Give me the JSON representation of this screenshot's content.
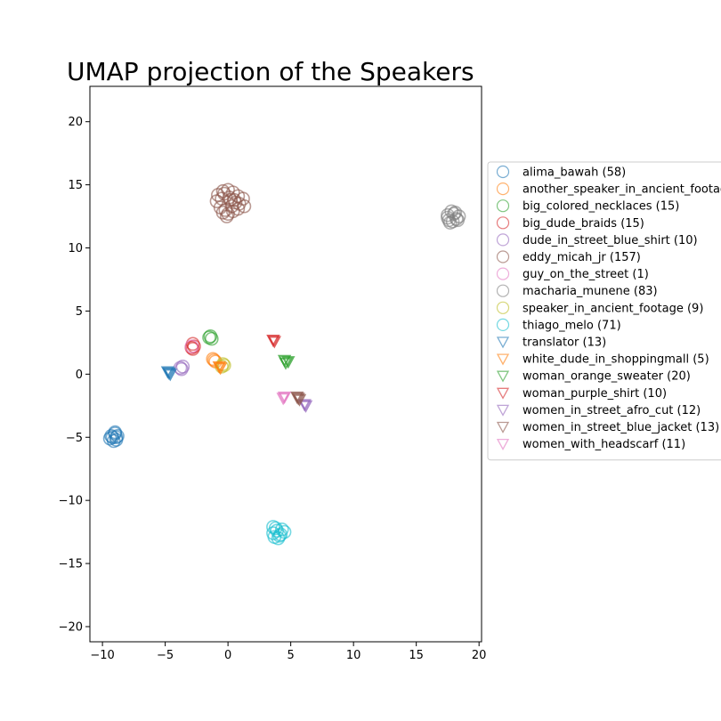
{
  "chart_data": {
    "type": "scatter",
    "title": "UMAP projection of the Speakers",
    "xlabel": "",
    "ylabel": "",
    "xlim": [
      -11,
      20.2
    ],
    "ylim": [
      -21.2,
      22.8
    ],
    "xticks": [
      -10,
      -5,
      0,
      5,
      10,
      15,
      20
    ],
    "yticks": [
      20,
      15,
      10,
      5,
      0,
      -5,
      -10,
      -15,
      -20
    ],
    "grid": false,
    "legend_position": "right",
    "series": [
      {
        "name": "alima_bawah (58)",
        "marker": "circle",
        "color": "#1f77b4",
        "x": [
          -9.2,
          -9.0,
          -8.9,
          -9.4,
          -9.1,
          -8.8,
          -9.3,
          -9.0,
          -8.9
        ],
        "y": [
          -5.0,
          -4.7,
          -5.2,
          -5.1,
          -5.3,
          -4.9,
          -4.9,
          -4.6,
          -5.0
        ]
      },
      {
        "name": "another_speaker_in_ancient_footage",
        "marker": "circle",
        "color": "#ff7f0e",
        "x": [
          -1.2,
          -1.1,
          -1.0
        ],
        "y": [
          1.2,
          1.1,
          1.0
        ]
      },
      {
        "name": "big_colored_necklaces (15)",
        "marker": "circle",
        "color": "#2ca02c",
        "x": [
          -1.5,
          -1.4,
          -1.3
        ],
        "y": [
          2.9,
          3.0,
          2.8
        ]
      },
      {
        "name": "big_dude_braids (15)",
        "marker": "circle",
        "color": "#d62728",
        "x": [
          -2.8,
          -2.7,
          -2.9,
          -2.8
        ],
        "y": [
          2.4,
          2.2,
          2.1,
          2.0
        ]
      },
      {
        "name": "dude_in_street_blue_shirt (10)",
        "marker": "circle",
        "color": "#9467bd",
        "x": [
          -3.8,
          -3.6,
          -3.7
        ],
        "y": [
          0.5,
          0.6,
          0.4
        ]
      },
      {
        "name": "eddy_micah_jr (157)",
        "marker": "circle",
        "color": "#8c564b",
        "x": [
          -0.8,
          -0.4,
          0.0,
          0.4,
          0.8,
          1.2,
          -0.9,
          -0.5,
          0.1,
          0.5,
          0.9,
          1.3,
          -0.6,
          -0.2,
          0.3,
          0.8,
          -0.4,
          0.0,
          0.4,
          -0.1,
          0.6,
          -0.3,
          0.2
        ],
        "y": [
          14.2,
          14.5,
          14.6,
          14.4,
          14.1,
          13.9,
          13.7,
          13.9,
          14.0,
          13.8,
          13.5,
          13.3,
          13.2,
          13.0,
          13.3,
          13.1,
          12.8,
          12.7,
          12.9,
          12.5,
          13.6,
          14.3,
          13.8
        ]
      },
      {
        "name": "guy_on_the_street (1)",
        "marker": "circle",
        "color": "#e377c2",
        "x": [
          -2.9
        ],
        "y": [
          2.2
        ]
      },
      {
        "name": "macharia_munene (83)",
        "marker": "circle",
        "color": "#7f7f7f",
        "x": [
          17.5,
          17.8,
          18.1,
          18.4,
          17.6,
          17.9,
          18.2,
          17.7,
          18.0,
          17.5,
          18.3
        ],
        "y": [
          12.6,
          12.9,
          12.8,
          12.5,
          12.2,
          12.1,
          12.3,
          12.0,
          12.7,
          12.4,
          12.2
        ]
      },
      {
        "name": "speaker_in_ancient_footage (9)",
        "marker": "circle",
        "color": "#bcbd22",
        "x": [
          -0.4,
          -0.3,
          -0.5
        ],
        "y": [
          0.8,
          0.7,
          0.6
        ]
      },
      {
        "name": "thiago_melo (71)",
        "marker": "circle",
        "color": "#17becf",
        "x": [
          3.6,
          3.9,
          4.2,
          4.5,
          3.7,
          4.0,
          3.8,
          4.3,
          3.6,
          4.1
        ],
        "y": [
          -12.1,
          -12.4,
          -12.7,
          -12.5,
          -12.9,
          -13.0,
          -12.2,
          -12.3,
          -12.6,
          -12.8
        ]
      },
      {
        "name": "translator (13)",
        "marker": "triangle",
        "color": "#1f77b4",
        "x": [
          -4.8,
          -4.7,
          -4.6
        ],
        "y": [
          0.2,
          0.1,
          0.0
        ]
      },
      {
        "name": "white_dude_in_shoppingmall (5)",
        "marker": "triangle",
        "color": "#ff7f0e",
        "x": [
          -0.7,
          -0.6
        ],
        "y": [
          0.6,
          0.5
        ]
      },
      {
        "name": "woman_orange_sweater (20)",
        "marker": "triangle",
        "color": "#2ca02c",
        "x": [
          4.5,
          4.8,
          4.6
        ],
        "y": [
          1.1,
          1.0,
          0.9
        ]
      },
      {
        "name": "woman_purple_shirt (10)",
        "marker": "triangle",
        "color": "#d62728",
        "x": [
          3.6,
          3.7
        ],
        "y": [
          2.7,
          2.6
        ]
      },
      {
        "name": "women_in_street_afro_cut (12)",
        "marker": "triangle",
        "color": "#9467bd",
        "x": [
          6.1,
          6.2
        ],
        "y": [
          -2.4,
          -2.5
        ]
      },
      {
        "name": "women_in_street_blue_jacket (13)",
        "marker": "triangle",
        "color": "#8c564b",
        "x": [
          5.6,
          5.7,
          5.5
        ],
        "y": [
          -1.9,
          -2.0,
          -1.8
        ]
      },
      {
        "name": "women_with_headscarf (11)",
        "marker": "triangle",
        "color": "#e377c2",
        "x": [
          4.4,
          4.5
        ],
        "y": [
          -1.9,
          -1.8
        ]
      }
    ]
  }
}
